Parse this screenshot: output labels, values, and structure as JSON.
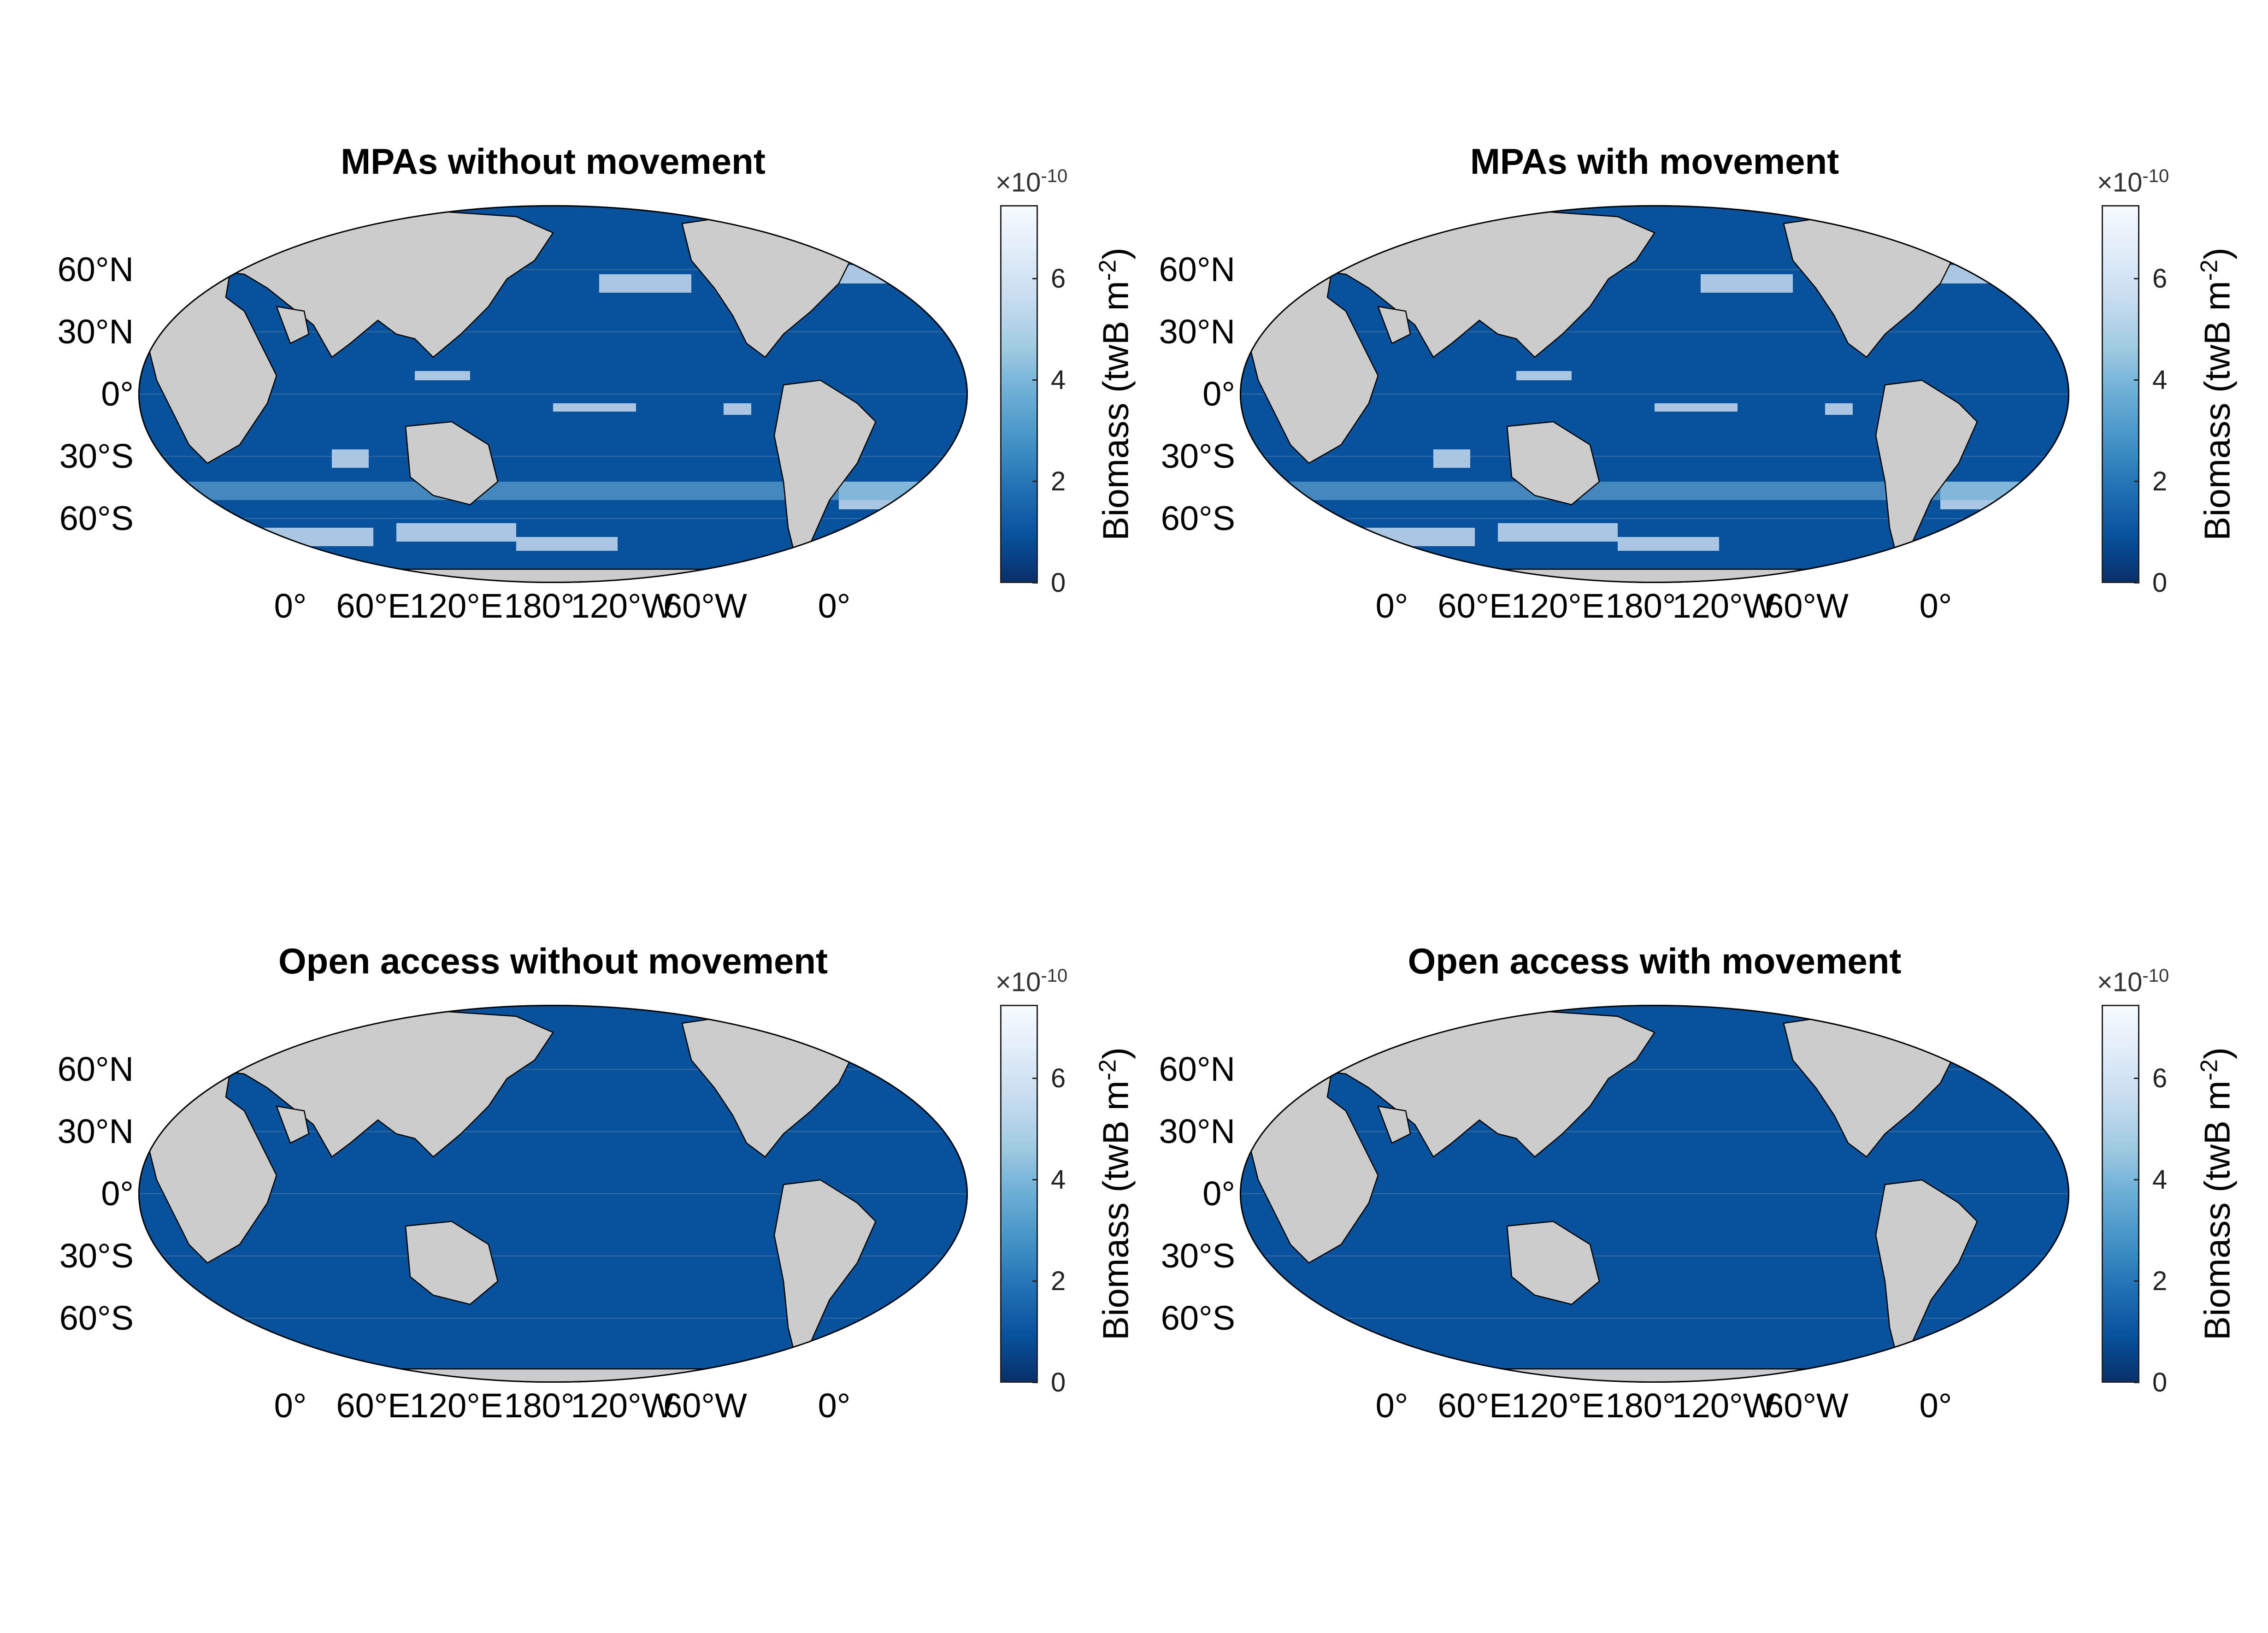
{
  "colors": {
    "land": "#cccccc",
    "ocean_low": "#08519c",
    "ocean_high": "#f7fbff",
    "coast": "#000000",
    "grid": "#bbbbbb"
  },
  "colorbar": {
    "multiplier": "×10",
    "exponent": "-10",
    "ticks": [
      "0",
      "2",
      "4",
      "6"
    ],
    "label": "Biomass (twB m",
    "label_exp": "-2",
    "label_end": ")",
    "colormap": "blues"
  },
  "lat_labels": [
    "60°N",
    "30°N",
    "0°",
    "30°S",
    "60°S"
  ],
  "lon_labels": [
    "0°",
    "60°E",
    "120°E",
    "180°",
    "120°W",
    "60°W",
    "0°"
  ],
  "panels": [
    {
      "title": "MPAs without movement",
      "scenario": "high-biomass-patches"
    },
    {
      "title": "MPAs with movement",
      "scenario": "high-biomass-patches"
    },
    {
      "title": "Open access without movement",
      "scenario": "uniform-low-biomass"
    },
    {
      "title": "Open access with movement",
      "scenario": "uniform-low-biomass"
    }
  ]
}
